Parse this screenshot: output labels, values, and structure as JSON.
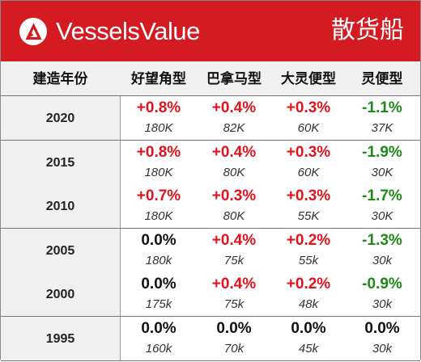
{
  "header": {
    "brand": "VesselsValue",
    "segment": "散货船",
    "logo_icon": "vesselsvalue-logo-icon",
    "colors": {
      "brand_red": "#d41b22",
      "up": "#e0121b",
      "down": "#1d8a17"
    }
  },
  "columns": [
    "建造年份",
    "好望角型",
    "巴拿马型",
    "大灵便型",
    "灵便型"
  ],
  "rows": [
    {
      "year": "2020",
      "cells": [
        {
          "pct": "+0.8%",
          "price": "180K",
          "trend": "up"
        },
        {
          "pct": "+0.4%",
          "price": "82K",
          "trend": "up"
        },
        {
          "pct": "+0.3%",
          "price": "60K",
          "trend": "up"
        },
        {
          "pct": "-1.1%",
          "price": "37K",
          "trend": "down"
        }
      ]
    },
    {
      "year": "2015",
      "cells": [
        {
          "pct": "+0.8%",
          "price": "180K",
          "trend": "up"
        },
        {
          "pct": "+0.4%",
          "price": "80K",
          "trend": "up"
        },
        {
          "pct": "+0.3%",
          "price": "60K",
          "trend": "up"
        },
        {
          "pct": "-1.9%",
          "price": "30K",
          "trend": "down"
        }
      ]
    },
    {
      "year": "2010",
      "cells": [
        {
          "pct": "+0.7%",
          "price": "180K",
          "trend": "up"
        },
        {
          "pct": "+0.3%",
          "price": "80K",
          "trend": "up"
        },
        {
          "pct": "+0.3%",
          "price": "55K",
          "trend": "up"
        },
        {
          "pct": "-1.7%",
          "price": "30K",
          "trend": "down"
        }
      ]
    },
    {
      "year": "2005",
      "cells": [
        {
          "pct": "0.0%",
          "price": "180k",
          "trend": "flat"
        },
        {
          "pct": "+0.4%",
          "price": "75k",
          "trend": "up"
        },
        {
          "pct": "+0.2%",
          "price": "55k",
          "trend": "up"
        },
        {
          "pct": "-1.3%",
          "price": "30k",
          "trend": "down"
        }
      ]
    },
    {
      "year": "2000",
      "cells": [
        {
          "pct": "0.0%",
          "price": "175k",
          "trend": "flat"
        },
        {
          "pct": "+0.4%",
          "price": "75k",
          "trend": "up"
        },
        {
          "pct": "+0.2%",
          "price": "48k",
          "trend": "up"
        },
        {
          "pct": "-0.9%",
          "price": "30k",
          "trend": "down"
        }
      ]
    },
    {
      "year": "1995",
      "cells": [
        {
          "pct": "0.0%",
          "price": "160k",
          "trend": "flat"
        },
        {
          "pct": "0.0%",
          "price": "70k",
          "trend": "flat"
        },
        {
          "pct": "0.0%",
          "price": "45k",
          "trend": "flat"
        },
        {
          "pct": "0.0%",
          "price": "30k",
          "trend": "flat"
        }
      ]
    }
  ]
}
